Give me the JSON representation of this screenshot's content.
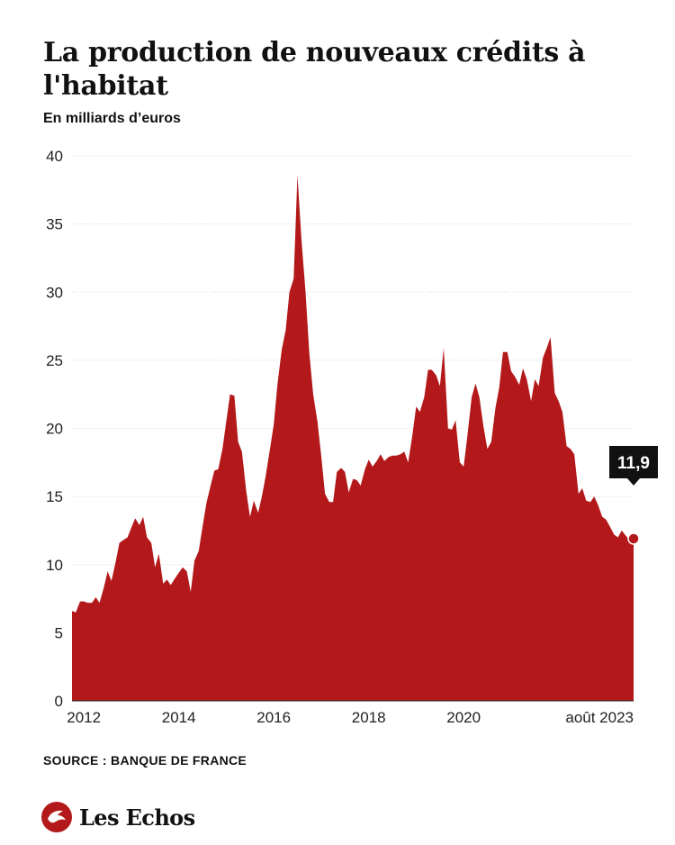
{
  "title": "La production de nouveaux crédits à l'habitat",
  "subtitle": "En milliards d’euros",
  "source": "SOURCE : BANQUE DE FRANCE",
  "brand": {
    "name": "Les Echos",
    "logo_icon": "les-echos-logo-icon"
  },
  "colors": {
    "area": "#b3191a",
    "grid": "#d6d6d6",
    "callout": "#111111",
    "axis": "#222222"
  },
  "chart_data": {
    "type": "area",
    "title": "La production de nouveaux crédits à l'habitat",
    "ylabel": "En milliards d’euros",
    "ylim": [
      0,
      40
    ],
    "yticks": [
      0,
      5,
      10,
      15,
      20,
      25,
      30,
      35,
      40
    ],
    "xlim": [
      2011.75,
      2023.58
    ],
    "xticks": [
      {
        "x": 2012,
        "label": "2012"
      },
      {
        "x": 2014,
        "label": "2014"
      },
      {
        "x": 2016,
        "label": "2016"
      },
      {
        "x": 2018,
        "label": "2018"
      },
      {
        "x": 2020,
        "label": "2020"
      },
      {
        "x": 2023.58,
        "label": "août 2023"
      }
    ],
    "grid": true,
    "annotation": {
      "x": 2023.58,
      "y": 11.9,
      "label": "11,9"
    },
    "series": [
      {
        "points": [
          [
            2011.75,
            6.6
          ],
          [
            2011.83,
            6.5
          ],
          [
            2011.92,
            7.3
          ],
          [
            2012.0,
            7.3
          ],
          [
            2012.08,
            7.2
          ],
          [
            2012.17,
            7.2
          ],
          [
            2012.25,
            7.6
          ],
          [
            2012.33,
            7.2
          ],
          [
            2012.42,
            8.3
          ],
          [
            2012.5,
            9.5
          ],
          [
            2012.58,
            8.8
          ],
          [
            2012.67,
            10.2
          ],
          [
            2012.75,
            11.6
          ],
          [
            2012.83,
            11.8
          ],
          [
            2012.92,
            12.0
          ],
          [
            2013.0,
            12.7
          ],
          [
            2013.08,
            13.4
          ],
          [
            2013.17,
            12.9
          ],
          [
            2013.25,
            13.5
          ],
          [
            2013.33,
            12.0
          ],
          [
            2013.42,
            11.6
          ],
          [
            2013.5,
            9.8
          ],
          [
            2013.58,
            10.8
          ],
          [
            2013.67,
            8.6
          ],
          [
            2013.75,
            8.9
          ],
          [
            2013.83,
            8.5
          ],
          [
            2013.92,
            9.0
          ],
          [
            2014.0,
            9.4
          ],
          [
            2014.08,
            9.8
          ],
          [
            2014.17,
            9.5
          ],
          [
            2014.25,
            8.0
          ],
          [
            2014.33,
            10.3
          ],
          [
            2014.42,
            11.0
          ],
          [
            2014.5,
            12.8
          ],
          [
            2014.58,
            14.5
          ],
          [
            2014.67,
            15.8
          ],
          [
            2014.75,
            16.9
          ],
          [
            2014.83,
            17.0
          ],
          [
            2014.92,
            18.5
          ],
          [
            2015.0,
            20.5
          ],
          [
            2015.08,
            22.5
          ],
          [
            2015.17,
            22.4
          ],
          [
            2015.25,
            19.0
          ],
          [
            2015.33,
            18.3
          ],
          [
            2015.42,
            15.4
          ],
          [
            2015.5,
            13.5
          ],
          [
            2015.58,
            14.7
          ],
          [
            2015.67,
            13.8
          ],
          [
            2015.75,
            15.0
          ],
          [
            2015.83,
            16.5
          ],
          [
            2015.92,
            18.5
          ],
          [
            2016.0,
            20.3
          ],
          [
            2016.08,
            23.3
          ],
          [
            2016.17,
            25.8
          ],
          [
            2016.25,
            27.2
          ],
          [
            2016.33,
            30.0
          ],
          [
            2016.42,
            31.0
          ],
          [
            2016.5,
            38.6
          ],
          [
            2016.58,
            34.0
          ],
          [
            2016.67,
            30.0
          ],
          [
            2016.75,
            25.5
          ],
          [
            2016.83,
            22.5
          ],
          [
            2016.92,
            20.5
          ],
          [
            2017.0,
            18.0
          ],
          [
            2017.08,
            15.2
          ],
          [
            2017.17,
            14.6
          ],
          [
            2017.25,
            14.6
          ],
          [
            2017.33,
            16.8
          ],
          [
            2017.42,
            17.1
          ],
          [
            2017.5,
            16.8
          ],
          [
            2017.58,
            15.3
          ],
          [
            2017.67,
            16.3
          ],
          [
            2017.75,
            16.2
          ],
          [
            2017.83,
            15.8
          ],
          [
            2017.92,
            17.0
          ],
          [
            2018.0,
            17.7
          ],
          [
            2018.08,
            17.2
          ],
          [
            2018.17,
            17.6
          ],
          [
            2018.25,
            18.1
          ],
          [
            2018.33,
            17.6
          ],
          [
            2018.42,
            17.9
          ],
          [
            2018.5,
            18.0
          ],
          [
            2018.58,
            18.0
          ],
          [
            2018.67,
            18.1
          ],
          [
            2018.75,
            18.3
          ],
          [
            2018.83,
            17.5
          ],
          [
            2018.92,
            19.5
          ],
          [
            2019.0,
            21.6
          ],
          [
            2019.08,
            21.2
          ],
          [
            2019.17,
            22.3
          ],
          [
            2019.25,
            24.3
          ],
          [
            2019.33,
            24.3
          ],
          [
            2019.42,
            23.9
          ],
          [
            2019.5,
            23.1
          ],
          [
            2019.58,
            25.9
          ],
          [
            2019.67,
            20.0
          ],
          [
            2019.75,
            19.9
          ],
          [
            2019.83,
            20.6
          ],
          [
            2019.92,
            17.5
          ],
          [
            2020.0,
            17.2
          ],
          [
            2020.08,
            19.5
          ],
          [
            2020.17,
            22.3
          ],
          [
            2020.25,
            23.3
          ],
          [
            2020.33,
            22.3
          ],
          [
            2020.42,
            20.1
          ],
          [
            2020.5,
            18.5
          ],
          [
            2020.58,
            19.0
          ],
          [
            2020.67,
            21.5
          ],
          [
            2020.75,
            23.0
          ],
          [
            2020.83,
            25.6
          ],
          [
            2020.92,
            25.6
          ],
          [
            2021.0,
            24.2
          ],
          [
            2021.08,
            23.8
          ],
          [
            2021.17,
            23.2
          ],
          [
            2021.25,
            24.4
          ],
          [
            2021.33,
            23.6
          ],
          [
            2021.42,
            22.0
          ],
          [
            2021.5,
            23.6
          ],
          [
            2021.58,
            23.1
          ],
          [
            2021.67,
            25.2
          ],
          [
            2021.75,
            25.9
          ],
          [
            2021.83,
            26.7
          ],
          [
            2021.92,
            22.6
          ],
          [
            2022.0,
            22.0
          ],
          [
            2022.08,
            21.2
          ],
          [
            2022.17,
            18.7
          ],
          [
            2022.25,
            18.5
          ],
          [
            2022.33,
            18.1
          ],
          [
            2022.42,
            15.2
          ],
          [
            2022.5,
            15.6
          ],
          [
            2022.58,
            14.7
          ],
          [
            2022.67,
            14.6
          ],
          [
            2022.75,
            15.0
          ],
          [
            2022.83,
            14.4
          ],
          [
            2022.92,
            13.5
          ],
          [
            2023.0,
            13.3
          ],
          [
            2023.08,
            12.8
          ],
          [
            2023.17,
            12.2
          ],
          [
            2023.25,
            12.0
          ],
          [
            2023.33,
            12.5
          ],
          [
            2023.42,
            12.1
          ],
          [
            2023.5,
            11.8
          ],
          [
            2023.58,
            11.9
          ]
        ]
      }
    ]
  }
}
